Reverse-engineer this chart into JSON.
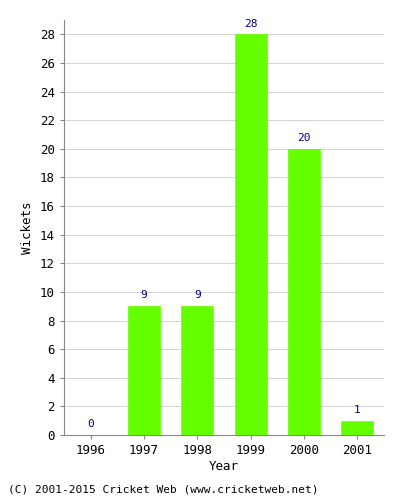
{
  "years": [
    "1996",
    "1997",
    "1998",
    "1999",
    "2000",
    "2001"
  ],
  "values": [
    0,
    9,
    9,
    28,
    20,
    1
  ],
  "bar_color": "#66ff00",
  "bar_edgecolor": "#66ff00",
  "label_color": "#00008B",
  "ylabel": "Wickets",
  "xlabel": "Year",
  "ylim": [
    0,
    29
  ],
  "yticks": [
    0,
    2,
    4,
    6,
    8,
    10,
    12,
    14,
    16,
    18,
    20,
    22,
    24,
    26,
    28
  ],
  "background_color": "#ffffff",
  "footer": "(C) 2001-2015 Cricket Web (www.cricketweb.net)",
  "label_fontsize": 8,
  "axis_fontsize": 9,
  "footer_fontsize": 8,
  "ylabel_fontsize": 9
}
